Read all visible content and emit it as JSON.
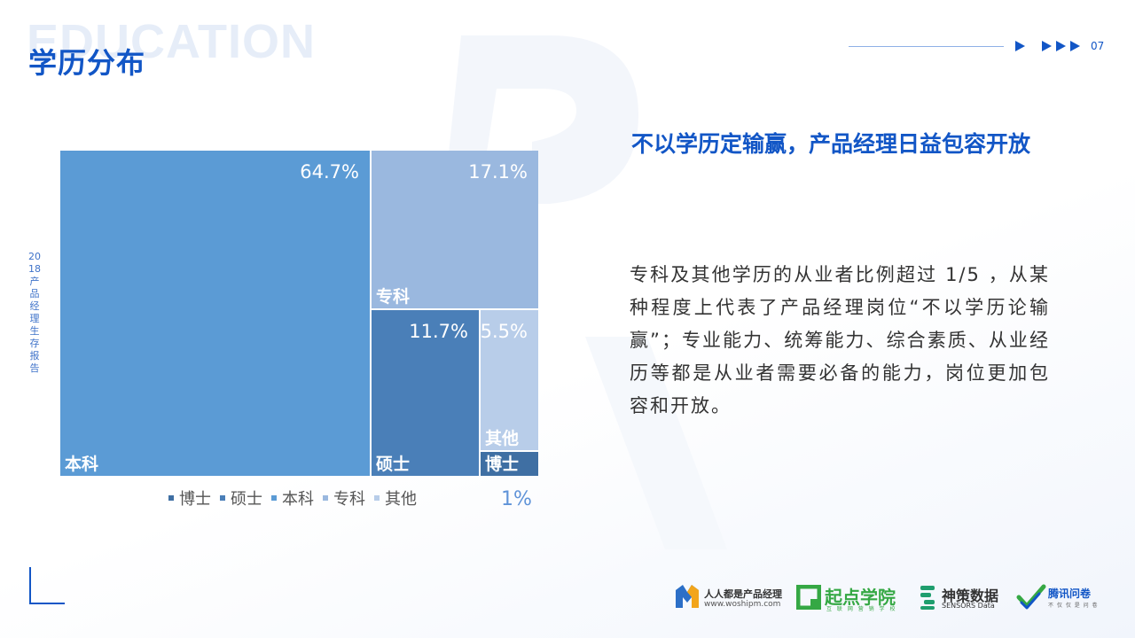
{
  "header": {
    "watermark": "EDUCATION",
    "title": "学历分布",
    "page_number": "07"
  },
  "side_label": "2018产品经理生存报告",
  "chart_data": {
    "type": "treemap",
    "title": "",
    "items": [
      {
        "name": "本科",
        "value": 64.7,
        "label": "64.7%",
        "color": "#5b9bd5"
      },
      {
        "name": "专科",
        "value": 17.1,
        "label": "17.1%",
        "color": "#9ab8df"
      },
      {
        "name": "硕士",
        "value": 11.7,
        "label": "11.7%",
        "color": "#4a7fb8"
      },
      {
        "name": "其他",
        "value": 5.5,
        "label": "5.5%",
        "color": "#b8cde9"
      },
      {
        "name": "博士",
        "value": 1.0,
        "label": "1%",
        "color": "#3f6fa3"
      }
    ],
    "legend": {
      "position": "bottom",
      "order": [
        "博士",
        "硕士",
        "本科",
        "专科",
        "其他"
      ]
    }
  },
  "chart_footnote": "1%",
  "headline": "不以学历定输赢，产品经理日益包容开放",
  "body": "专科及其他学历的从业者比例超过 1/5 ，从某种程度上代表了产品经理岗位“不以学历论输赢”；专业能力、统筹能力、综合素质、从业经历等都是从业者需要必备的能力，岗位更加包容和开放。",
  "logos": [
    {
      "icon": "woshipm-logo-icon",
      "name": "人人都是产品经理",
      "sub": "www.woshipm.com"
    },
    {
      "icon": "qidian-logo-icon",
      "name": "起点学院",
      "sub": "互 联 网 营 销 学 校"
    },
    {
      "icon": "sensors-logo-icon",
      "name": "神策数据",
      "sub": "SENSORS Data"
    },
    {
      "icon": "tencent-wenjuan-logo-icon",
      "name": "腾讯问卷",
      "sub": "不 仅 仅 是 问 卷"
    }
  ]
}
